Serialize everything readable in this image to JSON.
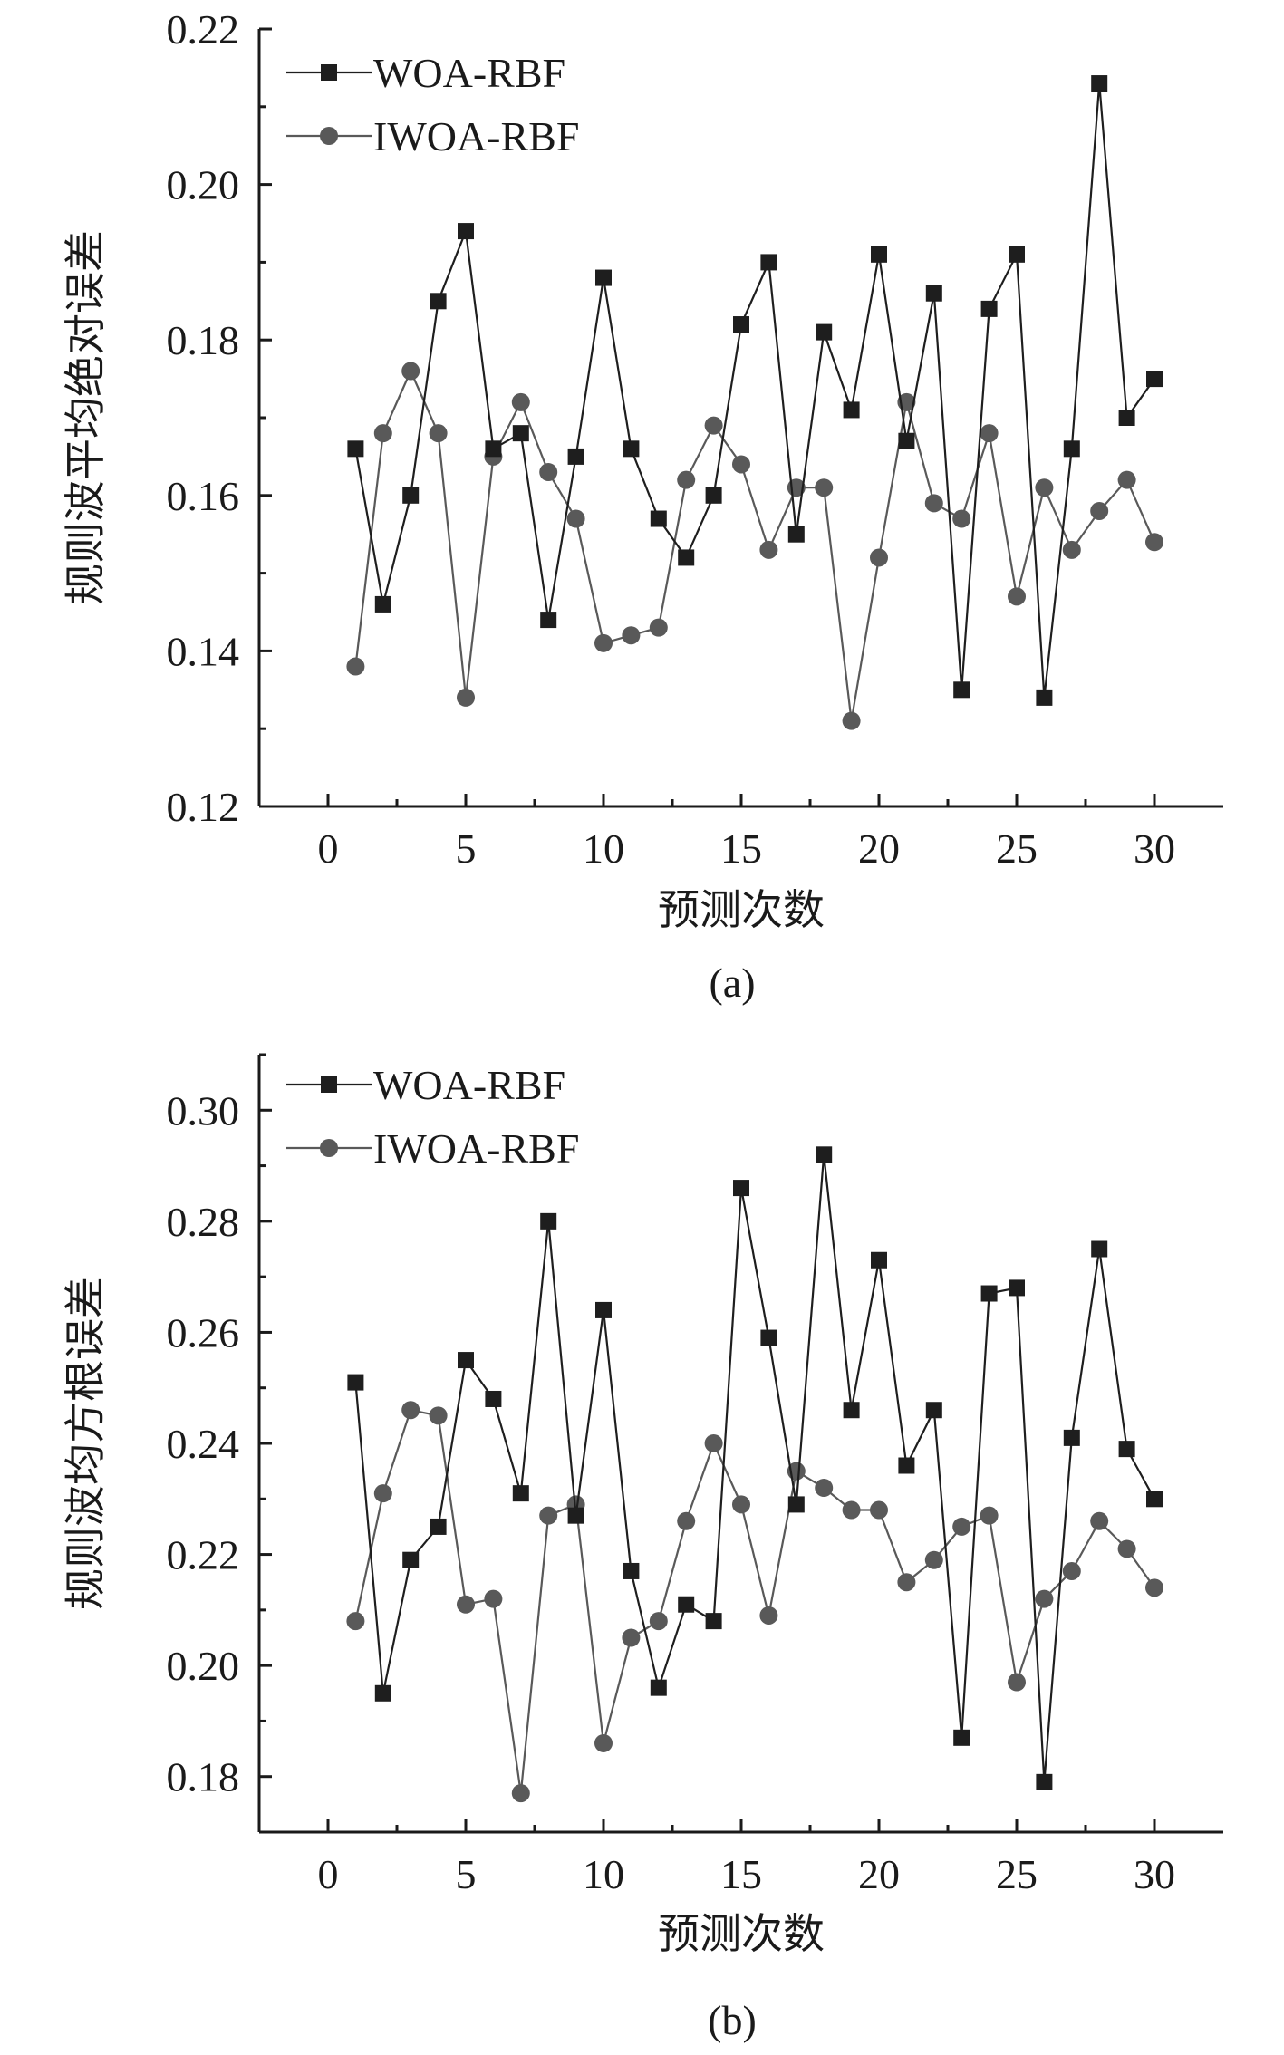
{
  "chart_data": [
    {
      "type": "line",
      "panel_label": "(a)",
      "xlabel": "预测次数",
      "ylabel": "规则波平均绝对误差",
      "xlim": [
        -2.5,
        32.5
      ],
      "ylim": [
        0.12,
        0.22
      ],
      "xticks": [
        0,
        5,
        10,
        15,
        20,
        25,
        30
      ],
      "yticks": [
        0.12,
        0.14,
        0.16,
        0.18,
        0.2,
        0.22
      ],
      "ytick_labels": [
        "0.12",
        "0.14",
        "0.16",
        "0.18",
        "0.20",
        "0.22"
      ],
      "legend_position": "top-left",
      "x": [
        1,
        2,
        3,
        4,
        5,
        6,
        7,
        8,
        9,
        10,
        11,
        12,
        13,
        14,
        15,
        16,
        17,
        18,
        19,
        20,
        21,
        22,
        23,
        24,
        25,
        26,
        27,
        28,
        29,
        30
      ],
      "series": [
        {
          "name": "WOA-RBF",
          "marker": "square",
          "color": "#1e1e1e",
          "values": [
            0.166,
            0.146,
            0.16,
            0.185,
            0.194,
            0.166,
            0.168,
            0.144,
            0.165,
            0.188,
            0.166,
            0.157,
            0.152,
            0.16,
            0.182,
            0.19,
            0.155,
            0.181,
            0.171,
            0.191,
            0.167,
            0.186,
            0.135,
            0.184,
            0.191,
            0.134,
            0.166,
            0.213,
            0.17,
            0.175
          ]
        },
        {
          "name": "IWOA-RBF",
          "marker": "circle",
          "color": "#595959",
          "values": [
            0.138,
            0.168,
            0.176,
            0.168,
            0.134,
            0.165,
            0.172,
            0.163,
            0.157,
            0.141,
            0.142,
            0.143,
            0.162,
            0.169,
            0.164,
            0.153,
            0.161,
            0.161,
            0.131,
            0.152,
            0.172,
            0.159,
            0.157,
            0.168,
            0.147,
            0.161,
            0.153,
            0.158,
            0.162,
            0.154
          ]
        }
      ]
    },
    {
      "type": "line",
      "panel_label": "(b)",
      "xlabel": "预测次数",
      "ylabel": "规则波均方根误差",
      "xlim": [
        -2.5,
        32.5
      ],
      "ylim": [
        0.17,
        0.31
      ],
      "xticks": [
        0,
        5,
        10,
        15,
        20,
        25,
        30
      ],
      "yticks": [
        0.18,
        0.2,
        0.22,
        0.24,
        0.26,
        0.28,
        0.3
      ],
      "ytick_labels": [
        "0.18",
        "0.20",
        "0.22",
        "0.24",
        "0.26",
        "0.28",
        "0.30"
      ],
      "legend_position": "top-left",
      "x": [
        1,
        2,
        3,
        4,
        5,
        6,
        7,
        8,
        9,
        10,
        11,
        12,
        13,
        14,
        15,
        16,
        17,
        18,
        19,
        20,
        21,
        22,
        23,
        24,
        25,
        26,
        27,
        28,
        29,
        30
      ],
      "series": [
        {
          "name": "WOA-RBF",
          "marker": "square",
          "color": "#1e1e1e",
          "values": [
            0.251,
            0.195,
            0.219,
            0.225,
            0.255,
            0.248,
            0.231,
            0.28,
            0.227,
            0.264,
            0.217,
            0.196,
            0.211,
            0.208,
            0.286,
            0.259,
            0.229,
            0.292,
            0.246,
            0.273,
            0.236,
            0.246,
            0.187,
            0.267,
            0.268,
            0.179,
            0.241,
            0.275,
            0.239,
            0.23
          ]
        },
        {
          "name": "IWOA-RBF",
          "marker": "circle",
          "color": "#595959",
          "values": [
            0.208,
            0.231,
            0.246,
            0.245,
            0.211,
            0.212,
            0.177,
            0.227,
            0.229,
            0.186,
            0.205,
            0.208,
            0.226,
            0.24,
            0.229,
            0.209,
            0.235,
            0.232,
            0.228,
            0.228,
            0.215,
            0.219,
            0.225,
            0.227,
            0.197,
            0.212,
            0.217,
            0.226,
            0.221,
            0.214
          ]
        }
      ]
    }
  ]
}
